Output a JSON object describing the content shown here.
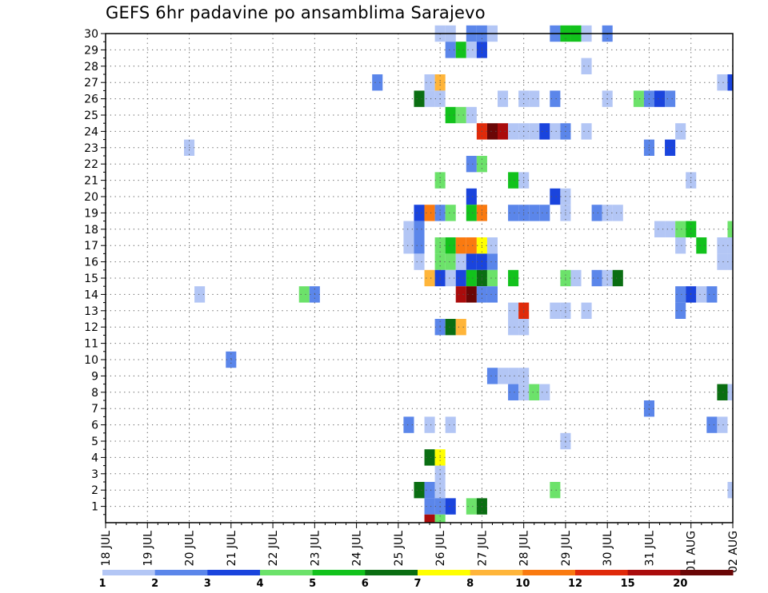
{
  "chart_data": {
    "type": "heatmap",
    "title": "GEFS 6hr padavine po ansamblima Sarajevo",
    "xlabel": "",
    "ylabel": "",
    "x_ticks": [
      "18 JUL",
      "19 JUL",
      "20 JUL",
      "21 JUL",
      "22 JUL",
      "23 JUL",
      "24 JUL",
      "25 JUL",
      "26 JUL",
      "27 JUL",
      "28 JUL",
      "29 JUL",
      "30 JUL",
      "31 JUL",
      "01 AUG",
      "02 AUG"
    ],
    "y_ticks": [
      1,
      2,
      3,
      4,
      5,
      6,
      7,
      8,
      9,
      10,
      11,
      12,
      13,
      14,
      15,
      16,
      17,
      18,
      19,
      20,
      21,
      22,
      23,
      24,
      25,
      26,
      27,
      28,
      29,
      30
    ],
    "grid": true,
    "legend_position": "bottom",
    "colorbar_labels": [
      "1",
      "2",
      "3",
      "4",
      "5",
      "6",
      "7",
      "8",
      "10",
      "12",
      "15",
      "20"
    ],
    "colorbar_colors": [
      "#b3c6f5",
      "#5b86ea",
      "#1a44dd",
      "#6ce26a",
      "#12c21c",
      "#0a6e12",
      "#ffff00",
      "#ffb53a",
      "#fa7a10",
      "#e02a0a",
      "#aa0c0c",
      "#6a0606"
    ],
    "cells": [
      {
        "m": 30,
        "x": "26 JUL 00Z",
        "c": 1
      },
      {
        "m": 30,
        "x": "26 JUL 06Z",
        "c": 1
      },
      {
        "m": 30,
        "x": "26 JUL 18Z",
        "c": 2
      },
      {
        "m": 30,
        "x": "27 JUL 00Z",
        "c": 2
      },
      {
        "m": 30,
        "x": "27 JUL 06Z",
        "c": 1
      },
      {
        "m": 30,
        "x": "28 JUL 18Z",
        "c": 2
      },
      {
        "m": 30,
        "x": "29 JUL 00Z",
        "c": 5
      },
      {
        "m": 30,
        "x": "29 JUL 06Z",
        "c": 5
      },
      {
        "m": 30,
        "x": "29 JUL 12Z",
        "c": 1
      },
      {
        "m": 30,
        "x": "30 JUL 00Z",
        "c": 2
      },
      {
        "m": 29,
        "x": "26 JUL 06Z",
        "c": 2
      },
      {
        "m": 29,
        "x": "26 JUL 12Z",
        "c": 5
      },
      {
        "m": 29,
        "x": "26 JUL 18Z",
        "c": 1
      },
      {
        "m": 29,
        "x": "27 JUL 00Z",
        "c": 3
      },
      {
        "m": 28,
        "x": "29 JUL 12Z",
        "c": 1
      },
      {
        "m": 27,
        "x": "24 JUL 12Z",
        "c": 2
      },
      {
        "m": 27,
        "x": "25 JUL 18Z",
        "c": 1
      },
      {
        "m": 27,
        "x": "26 JUL 00Z",
        "c": 8
      },
      {
        "m": 27,
        "x": "01 AUG 18Z",
        "c": 1
      },
      {
        "m": 27,
        "x": "02 AUG 00Z",
        "c": 3
      },
      {
        "m": 26,
        "x": "25 JUL 12Z",
        "c": 6
      },
      {
        "m": 26,
        "x": "25 JUL 18Z",
        "c": 1
      },
      {
        "m": 26,
        "x": "26 JUL 00Z",
        "c": 1
      },
      {
        "m": 26,
        "x": "27 JUL 12Z",
        "c": 1
      },
      {
        "m": 26,
        "x": "28 JUL 00Z",
        "c": 1
      },
      {
        "m": 26,
        "x": "28 JUL 06Z",
        "c": 1
      },
      {
        "m": 26,
        "x": "28 JUL 18Z",
        "c": 2
      },
      {
        "m": 26,
        "x": "30 JUL 00Z",
        "c": 1
      },
      {
        "m": 26,
        "x": "30 JUL 18Z",
        "c": 4
      },
      {
        "m": 26,
        "x": "31 JUL 00Z",
        "c": 2
      },
      {
        "m": 26,
        "x": "31 JUL 06Z",
        "c": 3
      },
      {
        "m": 26,
        "x": "31 JUL 12Z",
        "c": 2
      },
      {
        "m": 25,
        "x": "26 JUL 06Z",
        "c": 5
      },
      {
        "m": 25,
        "x": "26 JUL 12Z",
        "c": 4
      },
      {
        "m": 25,
        "x": "26 JUL 18Z",
        "c": 1
      },
      {
        "m": 24,
        "x": "27 JUL 00Z",
        "c": 10
      },
      {
        "m": 24,
        "x": "27 JUL 06Z",
        "c": 12
      },
      {
        "m": 24,
        "x": "27 JUL 12Z",
        "c": 11
      },
      {
        "m": 24,
        "x": "27 JUL 18Z",
        "c": 1
      },
      {
        "m": 24,
        "x": "28 JUL 00Z",
        "c": 1
      },
      {
        "m": 24,
        "x": "28 JUL 06Z",
        "c": 1
      },
      {
        "m": 24,
        "x": "28 JUL 12Z",
        "c": 3
      },
      {
        "m": 24,
        "x": "28 JUL 18Z",
        "c": 1
      },
      {
        "m": 24,
        "x": "29 JUL 00Z",
        "c": 2
      },
      {
        "m": 24,
        "x": "29 JUL 12Z",
        "c": 1
      },
      {
        "m": 24,
        "x": "31 JUL 18Z",
        "c": 1
      },
      {
        "m": 23,
        "x": "20 JUL 00Z",
        "c": 1
      },
      {
        "m": 23,
        "x": "31 JUL 00Z",
        "c": 2
      },
      {
        "m": 23,
        "x": "31 JUL 12Z",
        "c": 3
      },
      {
        "m": 22,
        "x": "26 JUL 18Z",
        "c": 2
      },
      {
        "m": 22,
        "x": "27 JUL 00Z",
        "c": 4
      },
      {
        "m": 21,
        "x": "26 JUL 00Z",
        "c": 4
      },
      {
        "m": 21,
        "x": "27 JUL 18Z",
        "c": 5
      },
      {
        "m": 21,
        "x": "28 JUL 00Z",
        "c": 1
      },
      {
        "m": 21,
        "x": "01 AUG 00Z",
        "c": 1
      },
      {
        "m": 20,
        "x": "26 JUL 18Z",
        "c": 3
      },
      {
        "m": 20,
        "x": "28 JUL 18Z",
        "c": 3
      },
      {
        "m": 20,
        "x": "29 JUL 00Z",
        "c": 1
      },
      {
        "m": 19,
        "x": "25 JUL 12Z",
        "c": 3
      },
      {
        "m": 19,
        "x": "25 JUL 18Z",
        "c": 9
      },
      {
        "m": 19,
        "x": "26 JUL 00Z",
        "c": 2
      },
      {
        "m": 19,
        "x": "26 JUL 06Z",
        "c": 4
      },
      {
        "m": 19,
        "x": "26 JUL 18Z",
        "c": 5
      },
      {
        "m": 19,
        "x": "27 JUL 00Z",
        "c": 9
      },
      {
        "m": 19,
        "x": "27 JUL 18Z",
        "c": 2
      },
      {
        "m": 19,
        "x": "28 JUL 00Z",
        "c": 2
      },
      {
        "m": 19,
        "x": "28 JUL 06Z",
        "c": 2
      },
      {
        "m": 19,
        "x": "28 JUL 12Z",
        "c": 2
      },
      {
        "m": 19,
        "x": "29 JUL 00Z",
        "c": 1
      },
      {
        "m": 19,
        "x": "29 JUL 18Z",
        "c": 2
      },
      {
        "m": 19,
        "x": "30 JUL 00Z",
        "c": 1
      },
      {
        "m": 19,
        "x": "30 JUL 06Z",
        "c": 1
      },
      {
        "m": 18,
        "x": "25 JUL 06Z",
        "c": 1
      },
      {
        "m": 18,
        "x": "25 JUL 12Z",
        "c": 2
      },
      {
        "m": 18,
        "x": "31 JUL 06Z",
        "c": 1
      },
      {
        "m": 18,
        "x": "31 JUL 12Z",
        "c": 1
      },
      {
        "m": 18,
        "x": "31 JUL 18Z",
        "c": 4
      },
      {
        "m": 18,
        "x": "01 AUG 00Z",
        "c": 5
      },
      {
        "m": 18,
        "x": "02 AUG 00Z",
        "c": 4
      },
      {
        "m": 17,
        "x": "25 JUL 06Z",
        "c": 1
      },
      {
        "m": 17,
        "x": "25 JUL 12Z",
        "c": 2
      },
      {
        "m": 17,
        "x": "26 JUL 00Z",
        "c": 4
      },
      {
        "m": 17,
        "x": "26 JUL 06Z",
        "c": 5
      },
      {
        "m": 17,
        "x": "26 JUL 12Z",
        "c": 9
      },
      {
        "m": 17,
        "x": "26 JUL 18Z",
        "c": 9
      },
      {
        "m": 17,
        "x": "27 JUL 00Z",
        "c": 7
      },
      {
        "m": 17,
        "x": "27 JUL 06Z",
        "c": 1
      },
      {
        "m": 17,
        "x": "01 AUG 06Z",
        "c": 5
      },
      {
        "m": 17,
        "x": "01 AUG 18Z",
        "c": 1
      },
      {
        "m": 17,
        "x": "02 AUG 00Z",
        "c": 1
      },
      {
        "m": 17,
        "x": "31 JUL 18Z",
        "c": 1
      },
      {
        "m": 16,
        "x": "25 JUL 12Z",
        "c": 1
      },
      {
        "m": 16,
        "x": "26 JUL 00Z",
        "c": 4
      },
      {
        "m": 16,
        "x": "26 JUL 06Z",
        "c": 4
      },
      {
        "m": 16,
        "x": "26 JUL 12Z",
        "c": 1
      },
      {
        "m": 16,
        "x": "26 JUL 18Z",
        "c": 3
      },
      {
        "m": 16,
        "x": "27 JUL 00Z",
        "c": 3
      },
      {
        "m": 16,
        "x": "27 JUL 06Z",
        "c": 2
      },
      {
        "m": 16,
        "x": "01 AUG 18Z",
        "c": 1
      },
      {
        "m": 16,
        "x": "02 AUG 00Z",
        "c": 1
      },
      {
        "m": 15,
        "x": "25 JUL 18Z",
        "c": 8
      },
      {
        "m": 15,
        "x": "26 JUL 00Z",
        "c": 3
      },
      {
        "m": 15,
        "x": "26 JUL 06Z",
        "c": 1
      },
      {
        "m": 15,
        "x": "26 JUL 12Z",
        "c": 3
      },
      {
        "m": 15,
        "x": "26 JUL 18Z",
        "c": 5
      },
      {
        "m": 15,
        "x": "27 JUL 00Z",
        "c": 6
      },
      {
        "m": 15,
        "x": "27 JUL 06Z",
        "c": 4
      },
      {
        "m": 15,
        "x": "27 JUL 18Z",
        "c": 5
      },
      {
        "m": 15,
        "x": "29 JUL 00Z",
        "c": 4
      },
      {
        "m": 15,
        "x": "29 JUL 06Z",
        "c": 1
      },
      {
        "m": 15,
        "x": "29 JUL 18Z",
        "c": 2
      },
      {
        "m": 15,
        "x": "30 JUL 00Z",
        "c": 1
      },
      {
        "m": 15,
        "x": "30 JUL 06Z",
        "c": 6
      },
      {
        "m": 14,
        "x": "20 JUL 06Z",
        "c": 1
      },
      {
        "m": 14,
        "x": "22 JUL 18Z",
        "c": 4
      },
      {
        "m": 14,
        "x": "23 JUL 00Z",
        "c": 2
      },
      {
        "m": 14,
        "x": "26 JUL 12Z",
        "c": 11
      },
      {
        "m": 14,
        "x": "26 JUL 18Z",
        "c": 12
      },
      {
        "m": 14,
        "x": "27 JUL 00Z",
        "c": 2
      },
      {
        "m": 14,
        "x": "27 JUL 06Z",
        "c": 2
      },
      {
        "m": 14,
        "x": "31 JUL 18Z",
        "c": 2
      },
      {
        "m": 14,
        "x": "01 AUG 00Z",
        "c": 3
      },
      {
        "m": 14,
        "x": "01 AUG 06Z",
        "c": 1
      },
      {
        "m": 14,
        "x": "01 AUG 12Z",
        "c": 2
      },
      {
        "m": 13,
        "x": "27 JUL 18Z",
        "c": 1
      },
      {
        "m": 13,
        "x": "28 JUL 00Z",
        "c": 10
      },
      {
        "m": 13,
        "x": "28 JUL 18Z",
        "c": 1
      },
      {
        "m": 13,
        "x": "29 JUL 00Z",
        "c": 1
      },
      {
        "m": 13,
        "x": "29 JUL 12Z",
        "c": 1
      },
      {
        "m": 13,
        "x": "31 JUL 18Z",
        "c": 2
      },
      {
        "m": 12,
        "x": "26 JUL 00Z",
        "c": 2
      },
      {
        "m": 12,
        "x": "26 JUL 06Z",
        "c": 6
      },
      {
        "m": 12,
        "x": "26 JUL 12Z",
        "c": 8
      },
      {
        "m": 12,
        "x": "27 JUL 18Z",
        "c": 1
      },
      {
        "m": 12,
        "x": "28 JUL 00Z",
        "c": 1
      },
      {
        "m": 10,
        "x": "21 JUL 00Z",
        "c": 2
      },
      {
        "m": 9,
        "x": "27 JUL 06Z",
        "c": 2
      },
      {
        "m": 9,
        "x": "27 JUL 12Z",
        "c": 1
      },
      {
        "m": 9,
        "x": "27 JUL 18Z",
        "c": 1
      },
      {
        "m": 9,
        "x": "28 JUL 00Z",
        "c": 1
      },
      {
        "m": 8,
        "x": "27 JUL 18Z",
        "c": 2
      },
      {
        "m": 8,
        "x": "28 JUL 00Z",
        "c": 1
      },
      {
        "m": 8,
        "x": "28 JUL 06Z",
        "c": 4
      },
      {
        "m": 8,
        "x": "28 JUL 12Z",
        "c": 1
      },
      {
        "m": 8,
        "x": "01 AUG 18Z",
        "c": 6
      },
      {
        "m": 8,
        "x": "02 AUG 00Z",
        "c": 1
      },
      {
        "m": 7,
        "x": "31 JUL 00Z",
        "c": 2
      },
      {
        "m": 6,
        "x": "25 JUL 06Z",
        "c": 2
      },
      {
        "m": 6,
        "x": "25 JUL 18Z",
        "c": 1
      },
      {
        "m": 6,
        "x": "26 JUL 06Z",
        "c": 1
      },
      {
        "m": 6,
        "x": "01 AUG 12Z",
        "c": 2
      },
      {
        "m": 6,
        "x": "01 AUG 18Z",
        "c": 1
      },
      {
        "m": 5,
        "x": "29 JUL 00Z",
        "c": 1
      },
      {
        "m": 4,
        "x": "25 JUL 18Z",
        "c": 6
      },
      {
        "m": 4,
        "x": "26 JUL 00Z",
        "c": 7
      },
      {
        "m": 3,
        "x": "26 JUL 00Z",
        "c": 1
      },
      {
        "m": 2,
        "x": "25 JUL 12Z",
        "c": 6
      },
      {
        "m": 2,
        "x": "25 JUL 18Z",
        "c": 2
      },
      {
        "m": 2,
        "x": "26 JUL 00Z",
        "c": 1
      },
      {
        "m": 2,
        "x": "28 JUL 18Z",
        "c": 4
      },
      {
        "m": 2,
        "x": "02 AUG 00Z",
        "c": 1
      },
      {
        "m": 1,
        "x": "25 JUL 18Z",
        "c": 2
      },
      {
        "m": 1,
        "x": "26 JUL 00Z",
        "c": 2
      },
      {
        "m": 1,
        "x": "26 JUL 06Z",
        "c": 3
      },
      {
        "m": 1,
        "x": "26 JUL 18Z",
        "c": 4
      },
      {
        "m": 1,
        "x": "27 JUL 00Z",
        "c": 6
      },
      {
        "m": 0,
        "x": "25 JUL 18Z",
        "c": 11
      },
      {
        "m": 0,
        "x": "26 JUL 00Z",
        "c": 4
      }
    ]
  }
}
